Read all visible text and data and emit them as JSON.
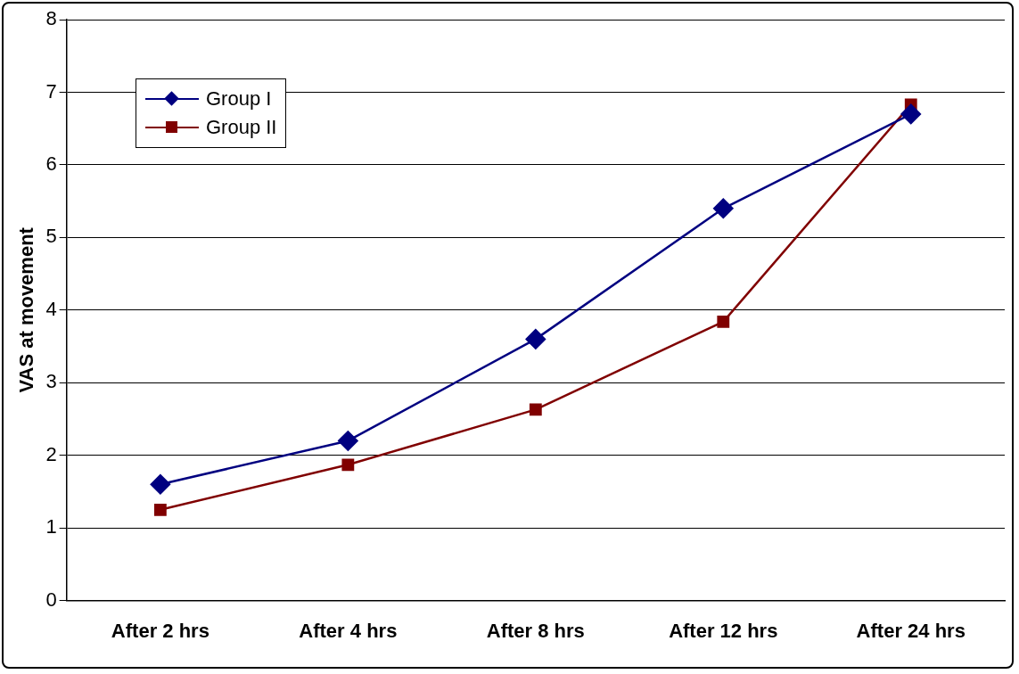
{
  "chart_data": {
    "type": "line",
    "ylabel": "VAS at movement",
    "categories": [
      "After 2 hrs",
      "After 4 hrs",
      "After 8 hrs",
      "After 12 hrs",
      "After 24 hrs"
    ],
    "series": [
      {
        "name": "Group I",
        "color": "#000080",
        "marker": "diamond",
        "values": [
          1.6,
          2.2,
          3.6,
          5.4,
          6.7
        ]
      },
      {
        "name": "Group II",
        "color": "#800000",
        "marker": "square",
        "values": [
          1.25,
          1.87,
          2.63,
          3.84,
          6.83
        ]
      }
    ],
    "ylim": [
      0,
      8
    ],
    "yticks": [
      0,
      1,
      2,
      3,
      4,
      5,
      6,
      7,
      8
    ],
    "grid": "y",
    "legend": "top left",
    "line_style": "solid"
  }
}
